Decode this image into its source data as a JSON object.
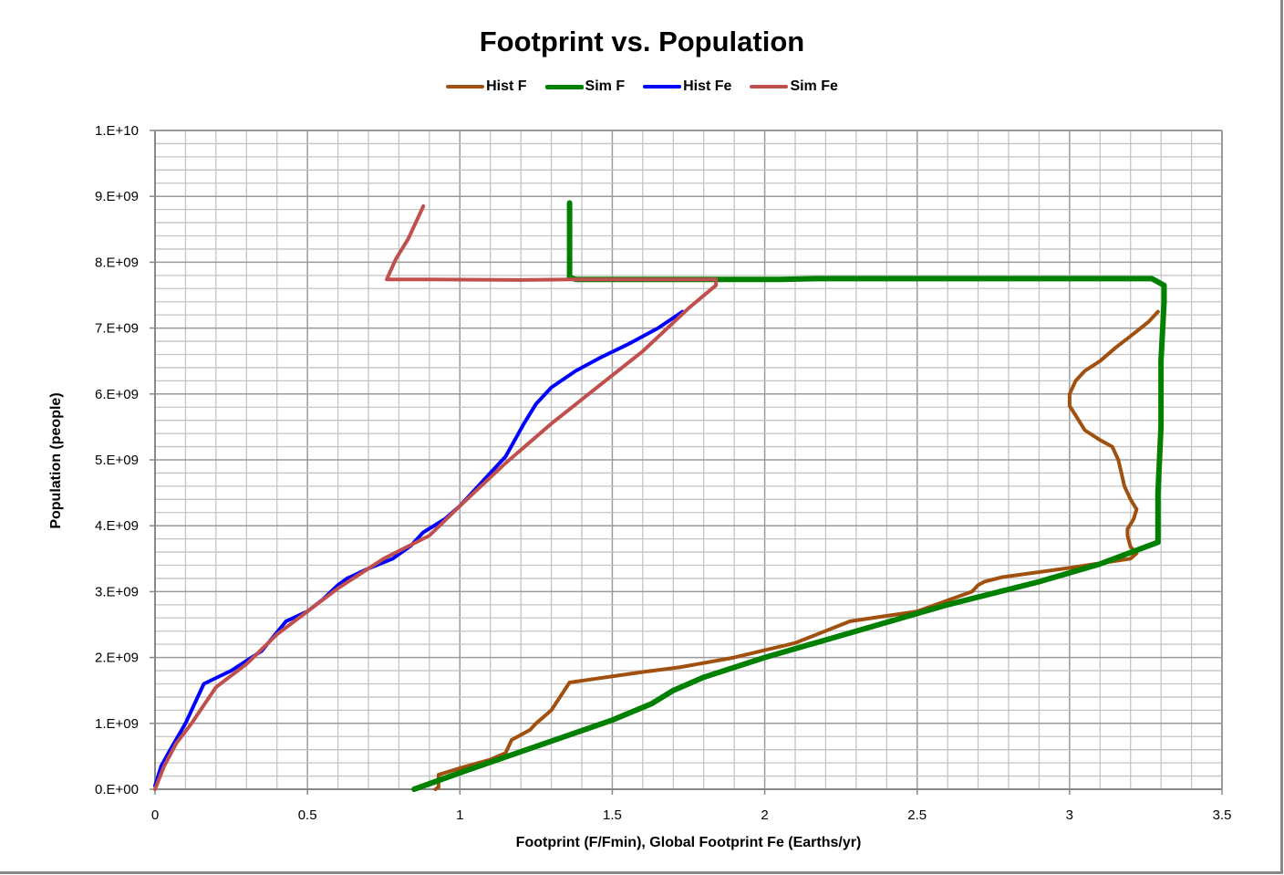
{
  "chart_data": {
    "type": "line",
    "title": "Footprint vs. Population",
    "xlabel": "Footprint (F/Fmin), Global Footprint Fe (Earths/yr)",
    "ylabel": "Population (people)",
    "xlim": [
      0,
      3.5
    ],
    "ylim": [
      0,
      10000000000
    ],
    "x_ticks": [
      "0",
      "0.5",
      "1",
      "1.5",
      "2",
      "2.5",
      "3",
      "3.5"
    ],
    "y_ticks": [
      "0.E+00",
      "1.E+09",
      "2.E+09",
      "3.E+09",
      "4.E+09",
      "5.E+09",
      "6.E+09",
      "7.E+09",
      "8.E+09",
      "9.E+09",
      "1.E+10"
    ],
    "grid": true,
    "legend_position": "top",
    "series": [
      {
        "name": "Hist F",
        "color": "#A0500F",
        "width": 4,
        "points": [
          [
            0.92,
            0.0
          ],
          [
            0.93,
            0.03
          ],
          [
            0.93,
            0.22
          ],
          [
            1.0,
            0.32
          ],
          [
            1.1,
            0.45
          ],
          [
            1.15,
            0.55
          ],
          [
            1.17,
            0.75
          ],
          [
            1.23,
            0.9
          ],
          [
            1.25,
            1.0
          ],
          [
            1.3,
            1.2
          ],
          [
            1.36,
            1.62
          ],
          [
            1.6,
            1.78
          ],
          [
            1.72,
            1.85
          ],
          [
            1.9,
            2.0
          ],
          [
            2.1,
            2.22
          ],
          [
            2.28,
            2.55
          ],
          [
            2.5,
            2.7
          ],
          [
            2.68,
            3.0
          ],
          [
            2.7,
            3.1
          ],
          [
            2.72,
            3.15
          ],
          [
            2.78,
            3.22
          ],
          [
            3.0,
            3.36
          ],
          [
            3.2,
            3.5
          ],
          [
            3.22,
            3.58
          ],
          [
            3.2,
            3.68
          ],
          [
            3.19,
            3.85
          ],
          [
            3.19,
            3.95
          ],
          [
            3.21,
            4.1
          ],
          [
            3.22,
            4.25
          ],
          [
            3.2,
            4.4
          ],
          [
            3.18,
            4.6
          ],
          [
            3.17,
            4.8
          ],
          [
            3.16,
            5.0
          ],
          [
            3.14,
            5.2
          ],
          [
            3.1,
            5.3
          ],
          [
            3.05,
            5.45
          ],
          [
            3.03,
            5.6
          ],
          [
            3.0,
            5.82
          ],
          [
            3.0,
            6.0
          ],
          [
            3.02,
            6.2
          ],
          [
            3.05,
            6.35
          ],
          [
            3.1,
            6.5
          ],
          [
            3.15,
            6.7
          ],
          [
            3.22,
            6.95
          ],
          [
            3.26,
            7.1
          ],
          [
            3.29,
            7.25
          ]
        ]
      },
      {
        "name": "Sim F",
        "color": "#008000",
        "width": 6,
        "points": [
          [
            0.85,
            0.0
          ],
          [
            1.0,
            0.25
          ],
          [
            1.25,
            0.65
          ],
          [
            1.5,
            1.05
          ],
          [
            1.63,
            1.3
          ],
          [
            1.7,
            1.5
          ],
          [
            1.8,
            1.7
          ],
          [
            2.0,
            2.0
          ],
          [
            2.3,
            2.4
          ],
          [
            2.6,
            2.8
          ],
          [
            2.9,
            3.15
          ],
          [
            3.1,
            3.42
          ],
          [
            3.29,
            3.75
          ],
          [
            3.29,
            4.5
          ],
          [
            3.3,
            5.5
          ],
          [
            3.3,
            6.5
          ],
          [
            3.31,
            7.4
          ],
          [
            3.31,
            7.65
          ],
          [
            3.27,
            7.75
          ],
          [
            2.5,
            7.75
          ],
          [
            2.17,
            7.75
          ],
          [
            2.05,
            7.74
          ],
          [
            1.6,
            7.74
          ],
          [
            1.38,
            7.74
          ],
          [
            1.36,
            7.77
          ],
          [
            1.36,
            8.9
          ]
        ]
      },
      {
        "name": "Hist Fe",
        "color": "#0000FF",
        "width": 4,
        "points": [
          [
            0.0,
            0.05
          ],
          [
            0.02,
            0.35
          ],
          [
            0.05,
            0.6
          ],
          [
            0.1,
            1.0
          ],
          [
            0.16,
            1.6
          ],
          [
            0.25,
            1.8
          ],
          [
            0.35,
            2.1
          ],
          [
            0.43,
            2.55
          ],
          [
            0.5,
            2.7
          ],
          [
            0.55,
            2.88
          ],
          [
            0.6,
            3.1
          ],
          [
            0.63,
            3.2
          ],
          [
            0.7,
            3.35
          ],
          [
            0.78,
            3.5
          ],
          [
            0.84,
            3.7
          ],
          [
            0.88,
            3.9
          ],
          [
            0.95,
            4.1
          ],
          [
            1.0,
            4.3
          ],
          [
            1.05,
            4.55
          ],
          [
            1.1,
            4.8
          ],
          [
            1.15,
            5.05
          ],
          [
            1.18,
            5.3
          ],
          [
            1.21,
            5.55
          ],
          [
            1.25,
            5.85
          ],
          [
            1.3,
            6.1
          ],
          [
            1.38,
            6.35
          ],
          [
            1.46,
            6.55
          ],
          [
            1.55,
            6.75
          ],
          [
            1.65,
            7.0
          ],
          [
            1.73,
            7.25
          ]
        ]
      },
      {
        "name": "Sim Fe",
        "color": "#C0504D",
        "width": 4,
        "points": [
          [
            0.0,
            0.0
          ],
          [
            0.03,
            0.35
          ],
          [
            0.07,
            0.7
          ],
          [
            0.12,
            1.0
          ],
          [
            0.2,
            1.55
          ],
          [
            0.3,
            1.9
          ],
          [
            0.4,
            2.35
          ],
          [
            0.5,
            2.7
          ],
          [
            0.6,
            3.05
          ],
          [
            0.75,
            3.5
          ],
          [
            0.9,
            3.85
          ],
          [
            1.0,
            4.3
          ],
          [
            1.15,
            4.95
          ],
          [
            1.3,
            5.55
          ],
          [
            1.45,
            6.1
          ],
          [
            1.6,
            6.65
          ],
          [
            1.75,
            7.3
          ],
          [
            1.84,
            7.65
          ],
          [
            1.84,
            7.74
          ],
          [
            1.6,
            7.74
          ],
          [
            1.37,
            7.74
          ],
          [
            1.2,
            7.73
          ],
          [
            0.9,
            7.74
          ],
          [
            0.76,
            7.74
          ],
          [
            0.79,
            8.05
          ],
          [
            0.83,
            8.35
          ],
          [
            0.86,
            8.65
          ],
          [
            0.88,
            8.85
          ]
        ]
      }
    ]
  },
  "legend": {
    "items": [
      {
        "label": "Hist F",
        "color": "#A0500F"
      },
      {
        "label": "Sim F",
        "color": "#008000"
      },
      {
        "label": "Hist Fe",
        "color": "#0000FF"
      },
      {
        "label": "Sim Fe",
        "color": "#C0504D"
      }
    ]
  }
}
